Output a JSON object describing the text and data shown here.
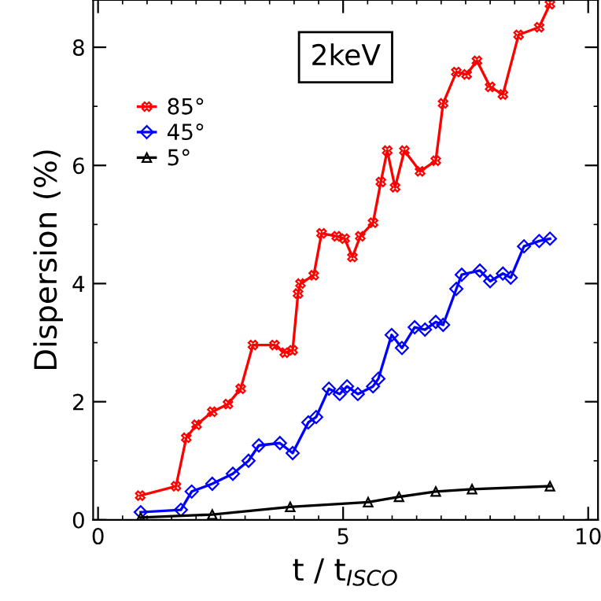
{
  "chart_data": {
    "type": "line",
    "xlabel": "t / t$_{ISCO}$",
    "ylabel": "Dispersion (%)",
    "annotations": [
      "2keV"
    ],
    "xlim": [
      -0.1,
      10.2
    ],
    "ylim": [
      0,
      8.8
    ],
    "xticks": [
      0,
      5,
      10
    ],
    "yticks": [
      0,
      2,
      4,
      6,
      8
    ],
    "grid": false,
    "legend": "top left",
    "line_style": "solid",
    "series": [
      {
        "name": "85°",
        "color": "#ff0000",
        "marker": "cross",
        "x": [
          0.86,
          1.59,
          1.8,
          2.01,
          2.33,
          2.65,
          2.91,
          3.16,
          3.6,
          3.81,
          3.97,
          4.08,
          4.13,
          4.4,
          4.56,
          4.87,
          5.03,
          5.19,
          5.35,
          5.61,
          5.77,
          5.9,
          6.06,
          6.25,
          6.57,
          6.89,
          7.04,
          7.31,
          7.52,
          7.73,
          8.0,
          8.26,
          8.58,
          9.0,
          9.22
        ],
        "values": [
          0.41,
          0.57,
          1.39,
          1.61,
          1.83,
          1.96,
          2.22,
          2.96,
          2.96,
          2.83,
          2.87,
          3.83,
          4.0,
          4.14,
          4.85,
          4.8,
          4.76,
          4.45,
          4.8,
          5.03,
          5.72,
          6.25,
          5.63,
          6.25,
          5.9,
          6.08,
          7.05,
          7.58,
          7.54,
          7.77,
          7.33,
          7.2,
          8.21,
          8.34,
          8.73
        ]
      },
      {
        "name": "45°",
        "color": "#0000ff",
        "marker": "diamond",
        "x": [
          0.87,
          1.69,
          1.91,
          2.33,
          2.75,
          3.07,
          3.28,
          3.71,
          3.97,
          4.29,
          4.45,
          4.71,
          4.93,
          5.08,
          5.3,
          5.61,
          5.72,
          5.99,
          6.2,
          6.46,
          6.67,
          6.89,
          7.04,
          7.31,
          7.42,
          7.79,
          8.0,
          8.26,
          8.42,
          8.69,
          9.0,
          9.22
        ],
        "values": [
          0.13,
          0.17,
          0.48,
          0.61,
          0.78,
          1.0,
          1.26,
          1.3,
          1.13,
          1.65,
          1.74,
          2.22,
          2.13,
          2.26,
          2.13,
          2.26,
          2.39,
          3.13,
          2.91,
          3.26,
          3.22,
          3.35,
          3.3,
          3.91,
          4.15,
          4.22,
          4.04,
          4.17,
          4.1,
          4.63,
          4.72,
          4.76
        ]
      },
      {
        "name": "5°",
        "color": "#000000",
        "marker": "triangle",
        "x": [
          0.87,
          2.33,
          3.92,
          5.51,
          6.14,
          6.89,
          7.63,
          9.22
        ],
        "values": [
          0.04,
          0.09,
          0.22,
          0.3,
          0.39,
          0.48,
          0.52,
          0.57
        ]
      }
    ]
  }
}
